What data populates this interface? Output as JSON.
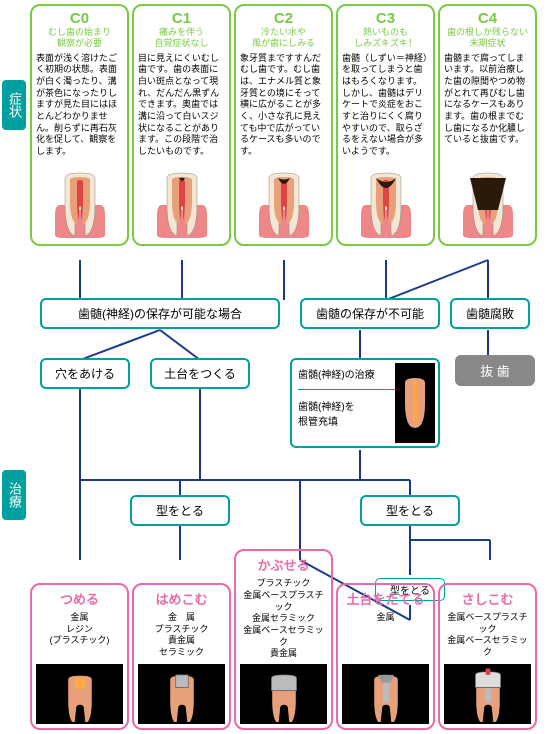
{
  "sideLabels": {
    "symptom": "症状",
    "treatment": "治療"
  },
  "stages": [
    {
      "id": "C0",
      "color": "#7ac943",
      "sub": "むし歯の始まり\n観察が必要",
      "desc": "表面が浅く溶けたごく初期の状態。表面が白く濁ったり、溝が茶色になったりしますが見た目にはほとんどわかりません。削らずに再石灰化を促して、観察をします。",
      "cavity": 0
    },
    {
      "id": "C1",
      "color": "#7ac943",
      "sub": "痛みを伴う\n自覚症状なし",
      "desc": "目に見えにくいむし歯です。歯の表面に白い斑点となって現れ、だんだん黒ずんできます。奥歯では溝に沿って白いスジ状になることがあります。この段階で治したいものです。",
      "cavity": 0.15
    },
    {
      "id": "C2",
      "color": "#7ac943",
      "sub": "冷たい水や\n風が歯にしみる",
      "desc": "象牙質まですすんだむし歯です。むし歯は、エナメル質と象牙質との境にそって横に広がることが多く、小さな孔に見えても中で広がっているケースも多いのです。",
      "cavity": 0.3
    },
    {
      "id": "C3",
      "color": "#7ac943",
      "sub": "熱いものも\nしみズキズキ！",
      "desc": "歯髄（しずい＝神経）を取ってしまうと歯はもろくなります。しかし、歯髄はデリケートで炎症をおこすと治りにくく腐りやすいので、取らざるをえない場合が多いようです。",
      "cavity": 0.5
    },
    {
      "id": "C4",
      "color": "#7ac943",
      "sub": "歯の根しか残らない\n末期症状",
      "desc": "歯髄まで腐ってしまいます。以前治療した歯の隙間やつめ物がとれて再びむし歯になるケースもあります。歯の根までむし歯になるか化膿していると抜歯です。",
      "cavity": 0.8
    }
  ],
  "flow": {
    "pulpSave": "歯髄(神経)の保存が可能な場合",
    "pulpNoSave": "歯髄の保存が不可能",
    "pulpRot": "歯髄腐敗",
    "drill": "穴をあける",
    "base": "土台をつくる",
    "extract": "抜 歯",
    "nerveTreat": "歯髄(神経)の治療",
    "rootFill": "歯髄(神経)を\n根管充填",
    "mold1": "型をとる",
    "mold2": "型をとる",
    "mold3": "型をとる"
  },
  "treatments": [
    {
      "title": "つめる",
      "mats": "金属\nレジン\n(プラスチック)"
    },
    {
      "title": "はめこむ",
      "mats": "金　属\nプラスチック\n貴金属\nセラミック"
    },
    {
      "title": "かぶせる",
      "mats": "プラスチック\n金属ベースプラスチック\n金属セラミック\n金属ベースセラミック\n貴金属"
    },
    {
      "title": "土台をたてる",
      "mats": "金属"
    },
    {
      "title": "さしこむ",
      "mats": "金属ベースプラスチック\n金属ベースセラミック"
    }
  ],
  "colors": {
    "teal": "#00a0a0",
    "pink": "#e86aa8",
    "green": "#7ac943",
    "navy": "#1a3a8a",
    "toothOuter": "#f5e6d3",
    "toothInner": "#e8a07a",
    "pulp": "#d44",
    "gum": "#e88",
    "cavity": "#2a1a0a"
  }
}
